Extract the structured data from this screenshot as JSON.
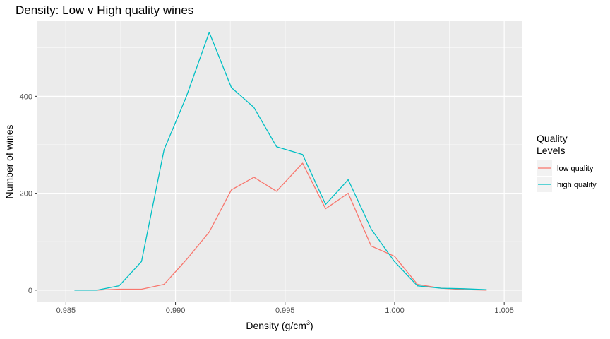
{
  "chart_data": {
    "type": "line",
    "title": "Density: Low v High quality wines",
    "xlabel": "Density (g/cm",
    "xlabel_superscript": "3",
    "xlabel_suffix": ")",
    "ylabel": "Number of wines",
    "xlim": [
      0.9837,
      1.0058
    ],
    "ylim": [
      -25,
      555
    ],
    "x_ticks": [
      0.985,
      0.99,
      0.995,
      1.0,
      1.005
    ],
    "x_tick_labels": [
      "0.985",
      "0.990",
      "0.995",
      "1.000",
      "1.005"
    ],
    "y_ticks": [
      0,
      200,
      400
    ],
    "y_tick_labels": [
      "0",
      "200",
      "400"
    ],
    "grid": true,
    "legend": {
      "title_line1": "Quality",
      "title_line2": "Levels",
      "position": "right"
    },
    "series": [
      {
        "name": "low quality",
        "color": "#F8766D",
        "x": [
          0.98539,
          0.98641,
          0.98743,
          0.98845,
          0.98948,
          0.9905,
          0.99154,
          0.99255,
          0.99358,
          0.99461,
          0.9958,
          0.99685,
          0.99788,
          0.99893,
          0.99999,
          1.00104,
          1.00212,
          1.00315,
          1.0042
        ],
        "y": [
          0,
          0,
          2,
          2,
          12,
          63,
          120,
          207,
          233,
          204,
          262,
          168,
          200,
          91,
          70,
          12,
          4,
          1,
          0
        ]
      },
      {
        "name": "high quality",
        "color": "#00BFC4",
        "x": [
          0.98539,
          0.98641,
          0.98743,
          0.98845,
          0.98948,
          0.9905,
          0.99154,
          0.99255,
          0.99358,
          0.99461,
          0.9958,
          0.99685,
          0.99788,
          0.99893,
          0.99999,
          1.00104,
          1.00212,
          1.00315,
          1.0042
        ],
        "y": [
          0,
          0,
          9,
          59,
          290,
          400,
          532,
          418,
          377,
          296,
          280,
          177,
          228,
          126,
          59,
          9,
          4,
          3,
          1
        ]
      }
    ]
  }
}
